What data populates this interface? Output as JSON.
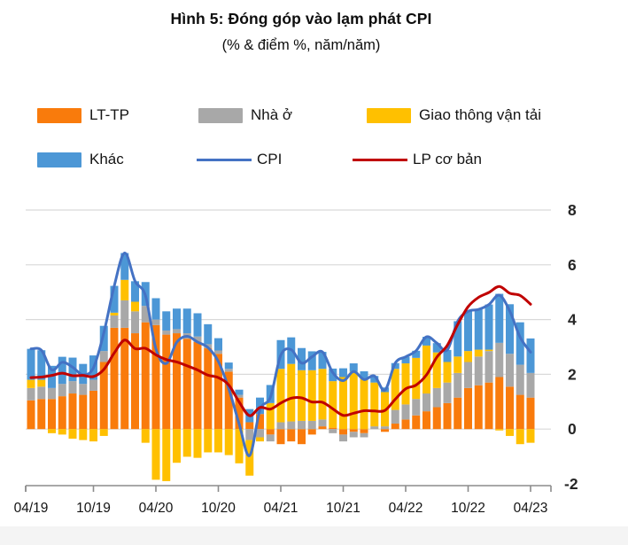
{
  "header": {
    "title": "Hình 5: Đóng góp vào lạm phát CPI",
    "subtitle": "(% & điểm %, năm/năm)"
  },
  "legend": {
    "items": [
      {
        "label": "LT-TP",
        "color": "#F97B0C",
        "type": "bar"
      },
      {
        "label": "Nhà ở",
        "color": "#A8A8A8",
        "type": "bar"
      },
      {
        "label": "Giao thông vận tải",
        "color": "#FFC000",
        "type": "bar"
      },
      {
        "label": "Khác",
        "color": "#4C97D6",
        "type": "bar"
      },
      {
        "label": "CPI",
        "color": "#4472C4",
        "type": "line"
      },
      {
        "label": "LP cơ bản",
        "color": "#C00000",
        "type": "line"
      }
    ]
  },
  "chart_data": {
    "type": "bar",
    "subtype": "stacked-bar-with-lines",
    "title": "Hình 5: Đóng góp vào lạm phát CPI",
    "unit_label": "(% & điểm %, năm/năm)",
    "ylim": [
      -2,
      8
    ],
    "y_ticks": [
      -2,
      0,
      2,
      4,
      6,
      8
    ],
    "grid": true,
    "legend_position": "top",
    "x_tick_labels": [
      "04/19",
      "10/19",
      "04/20",
      "10/20",
      "04/21",
      "10/21",
      "04/22",
      "10/22",
      "04/23"
    ],
    "months": [
      "04/19",
      "05/19",
      "06/19",
      "07/19",
      "08/19",
      "09/19",
      "10/19",
      "11/19",
      "12/19",
      "01/20",
      "02/20",
      "03/20",
      "04/20",
      "05/20",
      "06/20",
      "07/20",
      "08/20",
      "09/20",
      "10/20",
      "11/20",
      "12/20",
      "01/21",
      "02/21",
      "03/21",
      "04/21",
      "05/21",
      "06/21",
      "07/21",
      "08/21",
      "09/21",
      "10/21",
      "11/21",
      "12/21",
      "01/22",
      "02/22",
      "03/22",
      "04/22",
      "05/22",
      "06/22",
      "07/22",
      "08/22",
      "09/22",
      "10/22",
      "11/22",
      "12/22",
      "01/23",
      "02/23",
      "03/23",
      "04/23"
    ],
    "bar_series": [
      {
        "name": "LT-TP",
        "color": "#F97B0C",
        "values": [
          1.05,
          1.1,
          1.1,
          1.2,
          1.3,
          1.25,
          1.4,
          2.45,
          3.7,
          3.7,
          3.5,
          3.9,
          3.8,
          3.45,
          3.5,
          3.3,
          3.18,
          2.95,
          2.75,
          2.1,
          1.15,
          0.25,
          0.55,
          -0.2,
          -0.55,
          -0.45,
          -0.55,
          -0.2,
          0.1,
          0.05,
          -0.2,
          -0.1,
          -0.15,
          0.0,
          -0.1,
          0.2,
          0.35,
          0.5,
          0.65,
          0.8,
          0.95,
          1.15,
          1.5,
          1.6,
          1.7,
          1.9,
          1.55,
          1.25,
          1.15
        ]
      },
      {
        "name": "Nhà ở",
        "color": "#A8A8A8",
        "values": [
          0.45,
          0.45,
          0.4,
          0.45,
          0.45,
          0.4,
          0.4,
          0.4,
          0.45,
          1.0,
          0.8,
          0.6,
          0.2,
          0.15,
          0.15,
          0.2,
          0.2,
          0.15,
          0.12,
          0.1,
          0.1,
          -0.4,
          -0.3,
          -0.25,
          0.25,
          0.28,
          0.3,
          0.3,
          0.25,
          -0.15,
          -0.25,
          -0.2,
          -0.15,
          0.1,
          0.1,
          0.5,
          0.55,
          0.6,
          0.65,
          0.7,
          0.75,
          0.9,
          0.95,
          1.05,
          1.15,
          1.25,
          1.2,
          1.1,
          0.9
        ]
      },
      {
        "name": "Giao thông vận tải",
        "color": "#FFC000",
        "values": [
          0.3,
          0.25,
          -0.15,
          -0.2,
          -0.35,
          -0.4,
          -0.45,
          -0.25,
          0.1,
          0.75,
          0.35,
          -0.5,
          -1.85,
          -1.9,
          -1.23,
          -1.01,
          -1.05,
          -0.85,
          -0.85,
          -0.95,
          -1.25,
          -1.3,
          -0.15,
          0.95,
          1.95,
          2.1,
          1.85,
          1.85,
          1.85,
          1.7,
          1.9,
          2.1,
          1.85,
          1.6,
          1.25,
          1.5,
          1.5,
          1.5,
          1.75,
          1.3,
          0.75,
          0.6,
          0.4,
          0.25,
          0.05,
          -0.05,
          -0.25,
          -0.55,
          -0.5
        ]
      },
      {
        "name": "Khác",
        "color": "#4C97D6",
        "values": [
          1.13,
          1.08,
          0.81,
          0.99,
          0.86,
          0.73,
          0.89,
          0.92,
          0.98,
          0.98,
          0.75,
          0.87,
          0.78,
          0.7,
          0.75,
          0.9,
          0.85,
          0.73,
          0.45,
          0.23,
          0.19,
          0.48,
          0.6,
          0.66,
          1.05,
          0.97,
          0.81,
          0.69,
          0.62,
          0.46,
          0.32,
          0.3,
          0.26,
          0.24,
          0.17,
          0.21,
          0.24,
          0.26,
          0.32,
          0.34,
          0.44,
          1.29,
          1.45,
          1.47,
          1.65,
          1.79,
          1.81,
          1.55,
          1.26
        ]
      }
    ],
    "line_series": [
      {
        "name": "CPI",
        "color": "#4472C4",
        "values": [
          2.93,
          2.88,
          2.16,
          2.44,
          2.26,
          1.98,
          2.24,
          3.52,
          5.23,
          6.43,
          5.4,
          4.87,
          2.93,
          2.4,
          3.17,
          3.39,
          3.18,
          2.98,
          2.47,
          1.48,
          0.19,
          -0.97,
          0.7,
          1.16,
          2.7,
          2.9,
          2.41,
          2.64,
          2.82,
          2.06,
          1.77,
          2.1,
          1.81,
          1.94,
          1.42,
          2.41,
          2.64,
          2.86,
          3.37,
          3.14,
          2.89,
          3.94,
          4.3,
          4.37,
          4.55,
          4.89,
          4.31,
          3.35,
          2.81
        ]
      },
      {
        "name": "LP cơ bản",
        "color": "#C00000",
        "values": [
          1.88,
          1.9,
          1.96,
          2.04,
          1.95,
          1.96,
          1.92,
          2.18,
          2.78,
          3.25,
          2.94,
          2.95,
          2.71,
          2.54,
          2.45,
          2.31,
          2.16,
          1.97,
          1.88,
          1.61,
          0.99,
          0.49,
          0.79,
          0.73,
          0.95,
          1.13,
          1.14,
          0.99,
          0.98,
          0.74,
          0.5,
          0.58,
          0.67,
          0.66,
          0.68,
          1.09,
          1.47,
          1.61,
          1.98,
          2.63,
          3.06,
          3.82,
          4.47,
          4.81,
          4.99,
          5.21,
          4.96,
          4.88,
          4.56
        ]
      }
    ]
  }
}
